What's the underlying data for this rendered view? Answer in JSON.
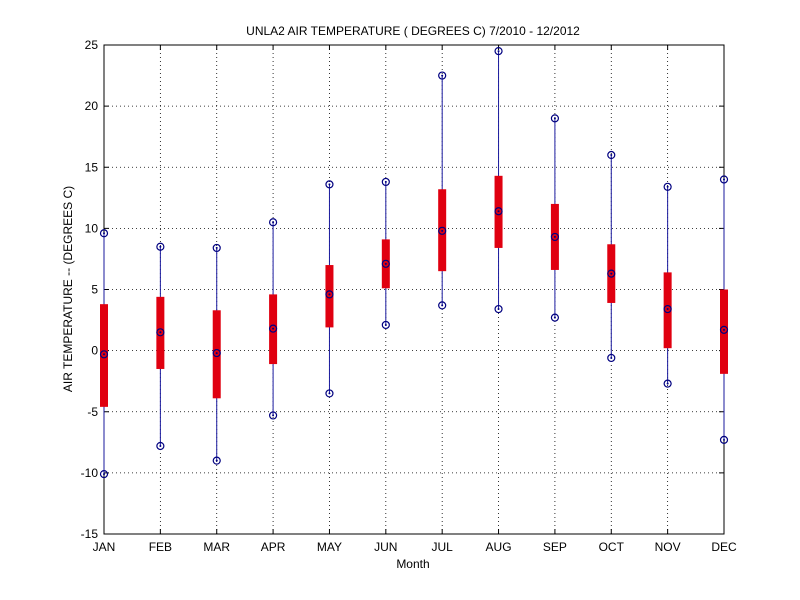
{
  "chart_data": {
    "type": "box",
    "title": "UNLA2  AIR TEMPERATURE ( DEGREES C) 7/2010 - 12/2012",
    "xlabel": "Month",
    "ylabel": "AIR TEMPERATURE -- (DEGREES C)",
    "categories": [
      "JAN",
      "FEB",
      "MAR",
      "APR",
      "MAY",
      "JUN",
      "JUL",
      "AUG",
      "SEP",
      "OCT",
      "NOV",
      "DEC"
    ],
    "ylim": [
      -15,
      25
    ],
    "yticks": [
      -15,
      -10,
      -5,
      0,
      5,
      10,
      15,
      20,
      25
    ],
    "grid": true,
    "box_color": "#e00010",
    "whisker_color": "#1a1a9e",
    "marker_color": "#000080",
    "min": [
      -10.1,
      -7.8,
      -9.0,
      -5.3,
      -3.5,
      2.1,
      3.7,
      3.4,
      2.7,
      -0.6,
      -2.7,
      -7.3
    ],
    "q1": [
      -4.6,
      -1.5,
      -3.9,
      -1.1,
      1.9,
      5.1,
      6.5,
      8.4,
      6.6,
      3.9,
      0.2,
      -1.9
    ],
    "median": [
      -0.3,
      1.5,
      -0.2,
      1.8,
      4.6,
      7.1,
      9.8,
      11.4,
      9.3,
      6.3,
      3.4,
      1.7
    ],
    "q3": [
      3.8,
      4.4,
      3.3,
      4.6,
      7.0,
      9.1,
      13.2,
      14.3,
      12.0,
      8.7,
      6.4,
      5.0
    ],
    "max": [
      9.6,
      8.5,
      8.4,
      10.5,
      13.6,
      13.8,
      22.5,
      24.5,
      19.0,
      16.0,
      13.4,
      14.0
    ]
  }
}
